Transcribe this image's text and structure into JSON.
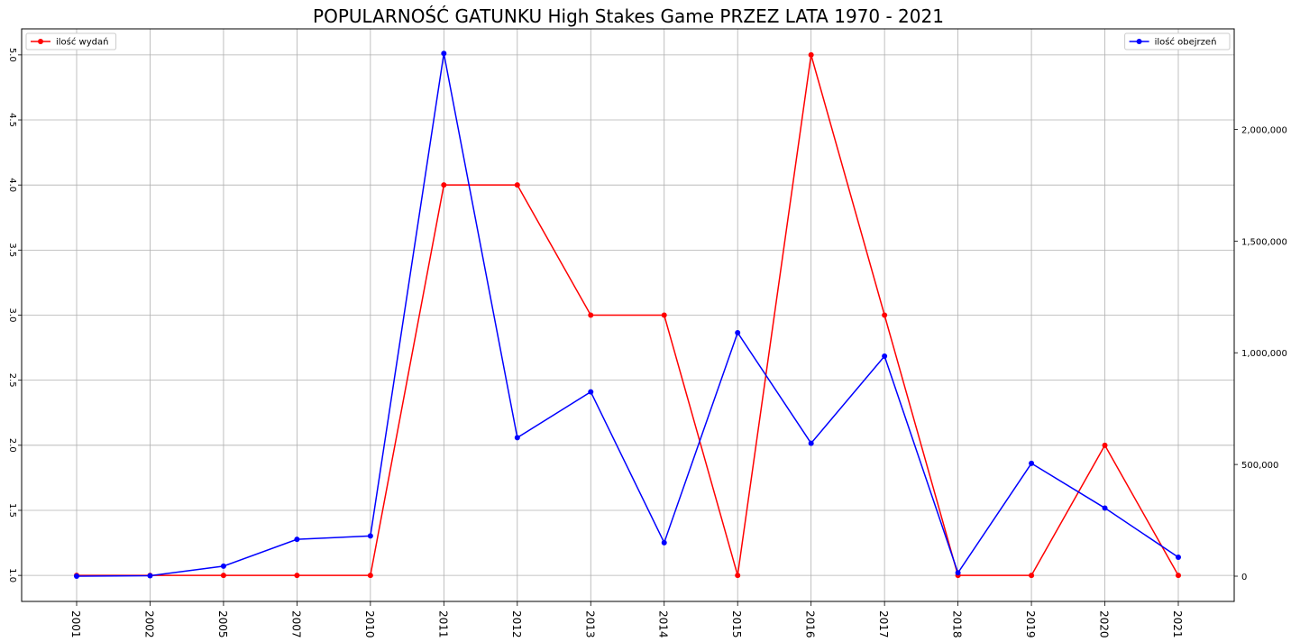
{
  "chart_data": {
    "type": "line",
    "title": "POPULARNOŚĆ GATUNKU High Stakes Game PRZEZ LATA 1970 - 2021",
    "xlabel": "",
    "categories": [
      "2001",
      "2002",
      "2005",
      "2007",
      "2010",
      "2011",
      "2012",
      "2013",
      "2014",
      "2015",
      "2016",
      "2017",
      "2018",
      "2019",
      "2020",
      "2021"
    ],
    "grid": true,
    "y_left": {
      "ylim": [
        0.8,
        5.2
      ],
      "ticks": [
        1.0,
        1.5,
        2.0,
        2.5,
        3.0,
        3.5,
        4.0,
        4.5,
        5.0
      ],
      "tick_labels": [
        "1.0",
        "1.5",
        "2.0",
        "2.5",
        "3.0",
        "3.5",
        "4.0",
        "4.5",
        "5.0"
      ]
    },
    "y_right": {
      "ylim": [
        -113000,
        2450000
      ],
      "ticks": [
        0,
        500000,
        1000000,
        1500000,
        2000000
      ],
      "tick_labels": [
        "0",
        "500,000",
        "1,000,000",
        "1,500,000",
        "2,000,000"
      ]
    },
    "series": [
      {
        "name": "ilość wydań",
        "axis": "left",
        "color": "#ff0000",
        "legend": "top-left",
        "values": [
          1,
          1,
          1,
          1,
          1,
          4,
          4,
          3,
          3,
          1,
          5,
          3,
          1,
          1,
          2,
          1
        ]
      },
      {
        "name": "ilość obejrzeń",
        "axis": "right",
        "color": "#0000ff",
        "legend": "top-right",
        "values": [
          0,
          2000,
          45000,
          165000,
          180000,
          2340000,
          620000,
          825000,
          150000,
          1090000,
          595000,
          985000,
          15000,
          505000,
          305000,
          85000
        ]
      }
    ]
  }
}
